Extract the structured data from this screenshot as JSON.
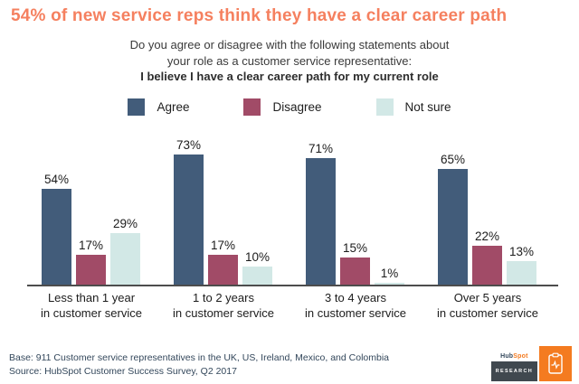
{
  "header": {
    "title": "54% of new service reps think they have a clear career path",
    "subtitle_line1": "Do you agree or disagree with the following statements about",
    "subtitle_line2": "your role as a customer service representative:",
    "subtitle_line3": "I believe I have a clear career path for my current role"
  },
  "colors": {
    "title_orange": "#f5805f",
    "agree": "#425c7a",
    "disagree": "#a14b67",
    "not_sure": "#d2e8e6",
    "axis": "#4d4d4d",
    "footer_text": "#33475b",
    "logo_orange": "#f47b20",
    "logo_dark": "#40484f"
  },
  "legend": [
    {
      "label": "Agree",
      "color": "#425c7a"
    },
    {
      "label": "Disagree",
      "color": "#a14b67"
    },
    {
      "label": "Not sure",
      "color": "#d2e8e6"
    }
  ],
  "chart_data": {
    "type": "bar",
    "title": "I believe I have a clear career path for my current role",
    "question": "Do you agree or disagree with the following statements about your role as a customer service representative:",
    "categories": [
      {
        "line1": "Less than 1 year",
        "line2": "in customer service"
      },
      {
        "line1": "1 to 2 years",
        "line2": "in customer service"
      },
      {
        "line1": "3 to 4 years",
        "line2": "in customer service"
      },
      {
        "line1": "Over 5 years",
        "line2": "in customer service"
      }
    ],
    "series": [
      {
        "name": "Agree",
        "color": "#425c7a",
        "values": [
          54,
          73,
          71,
          65
        ]
      },
      {
        "name": "Disagree",
        "color": "#a14b67",
        "values": [
          17,
          17,
          15,
          22
        ]
      },
      {
        "name": "Not sure",
        "color": "#d2e8e6",
        "values": [
          29,
          10,
          1,
          13
        ]
      }
    ],
    "value_label_suffix": "%",
    "ylim": [
      0,
      100
    ],
    "grid": false,
    "legend_position": "top"
  },
  "footer": {
    "base": "Base: 911 Customer service representatives in the UK, US, Ireland, Mexico, and Colombia",
    "source": "Source: HubSpot Customer Success Survey, Q2 2017"
  },
  "logo": {
    "brand_hub": "Hub",
    "brand_spot": "Spot",
    "sub": "RESEARCH"
  }
}
